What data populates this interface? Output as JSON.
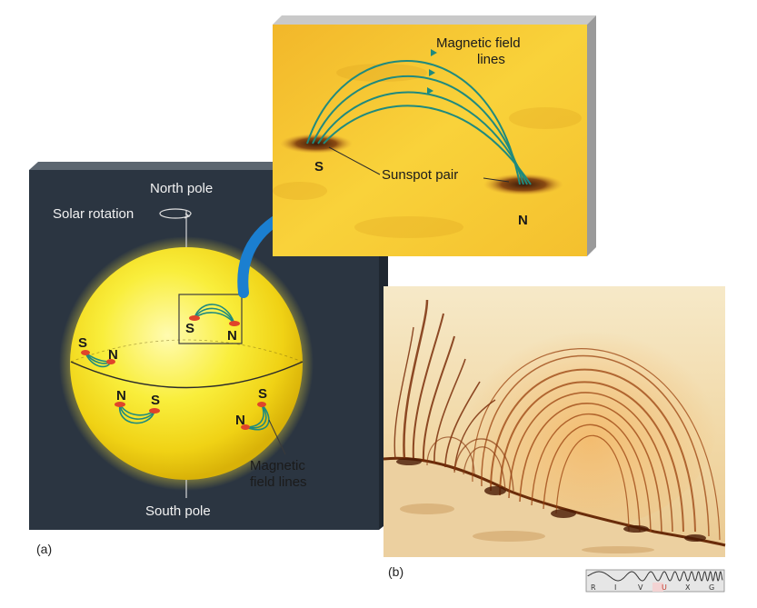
{
  "panel_a": {
    "caption": "(a)",
    "labels": {
      "north_pole": "North pole",
      "south_pole": "South pole",
      "solar_rotation": "Solar rotation",
      "magnetic_field_lines": "Magnetic field lines",
      "sunspot_pair": "Sunspot pair",
      "field_lines_inset_line1": "Magnetic field",
      "field_lines_inset_line2": "lines",
      "field_lines_globe_line1": "Magnetic",
      "field_lines_globe_line2": "field lines"
    },
    "poles": {
      "south": "S",
      "north": "N"
    }
  },
  "panel_b": {
    "caption": "(b)",
    "spectrum_bands": [
      "R",
      "I",
      "V",
      "U",
      "X",
      "G"
    ],
    "highlight_band": "U"
  },
  "colors": {
    "globe_background": "#2a3440",
    "sun_yellow": "#f7e21a",
    "inset_yellow": "#f5c22a",
    "field_line_teal": "#1f8a7e",
    "arrow_blue": "#1b7fd0",
    "sunspot_red": "#e0442a",
    "corona_brown": "#8a3c12"
  }
}
